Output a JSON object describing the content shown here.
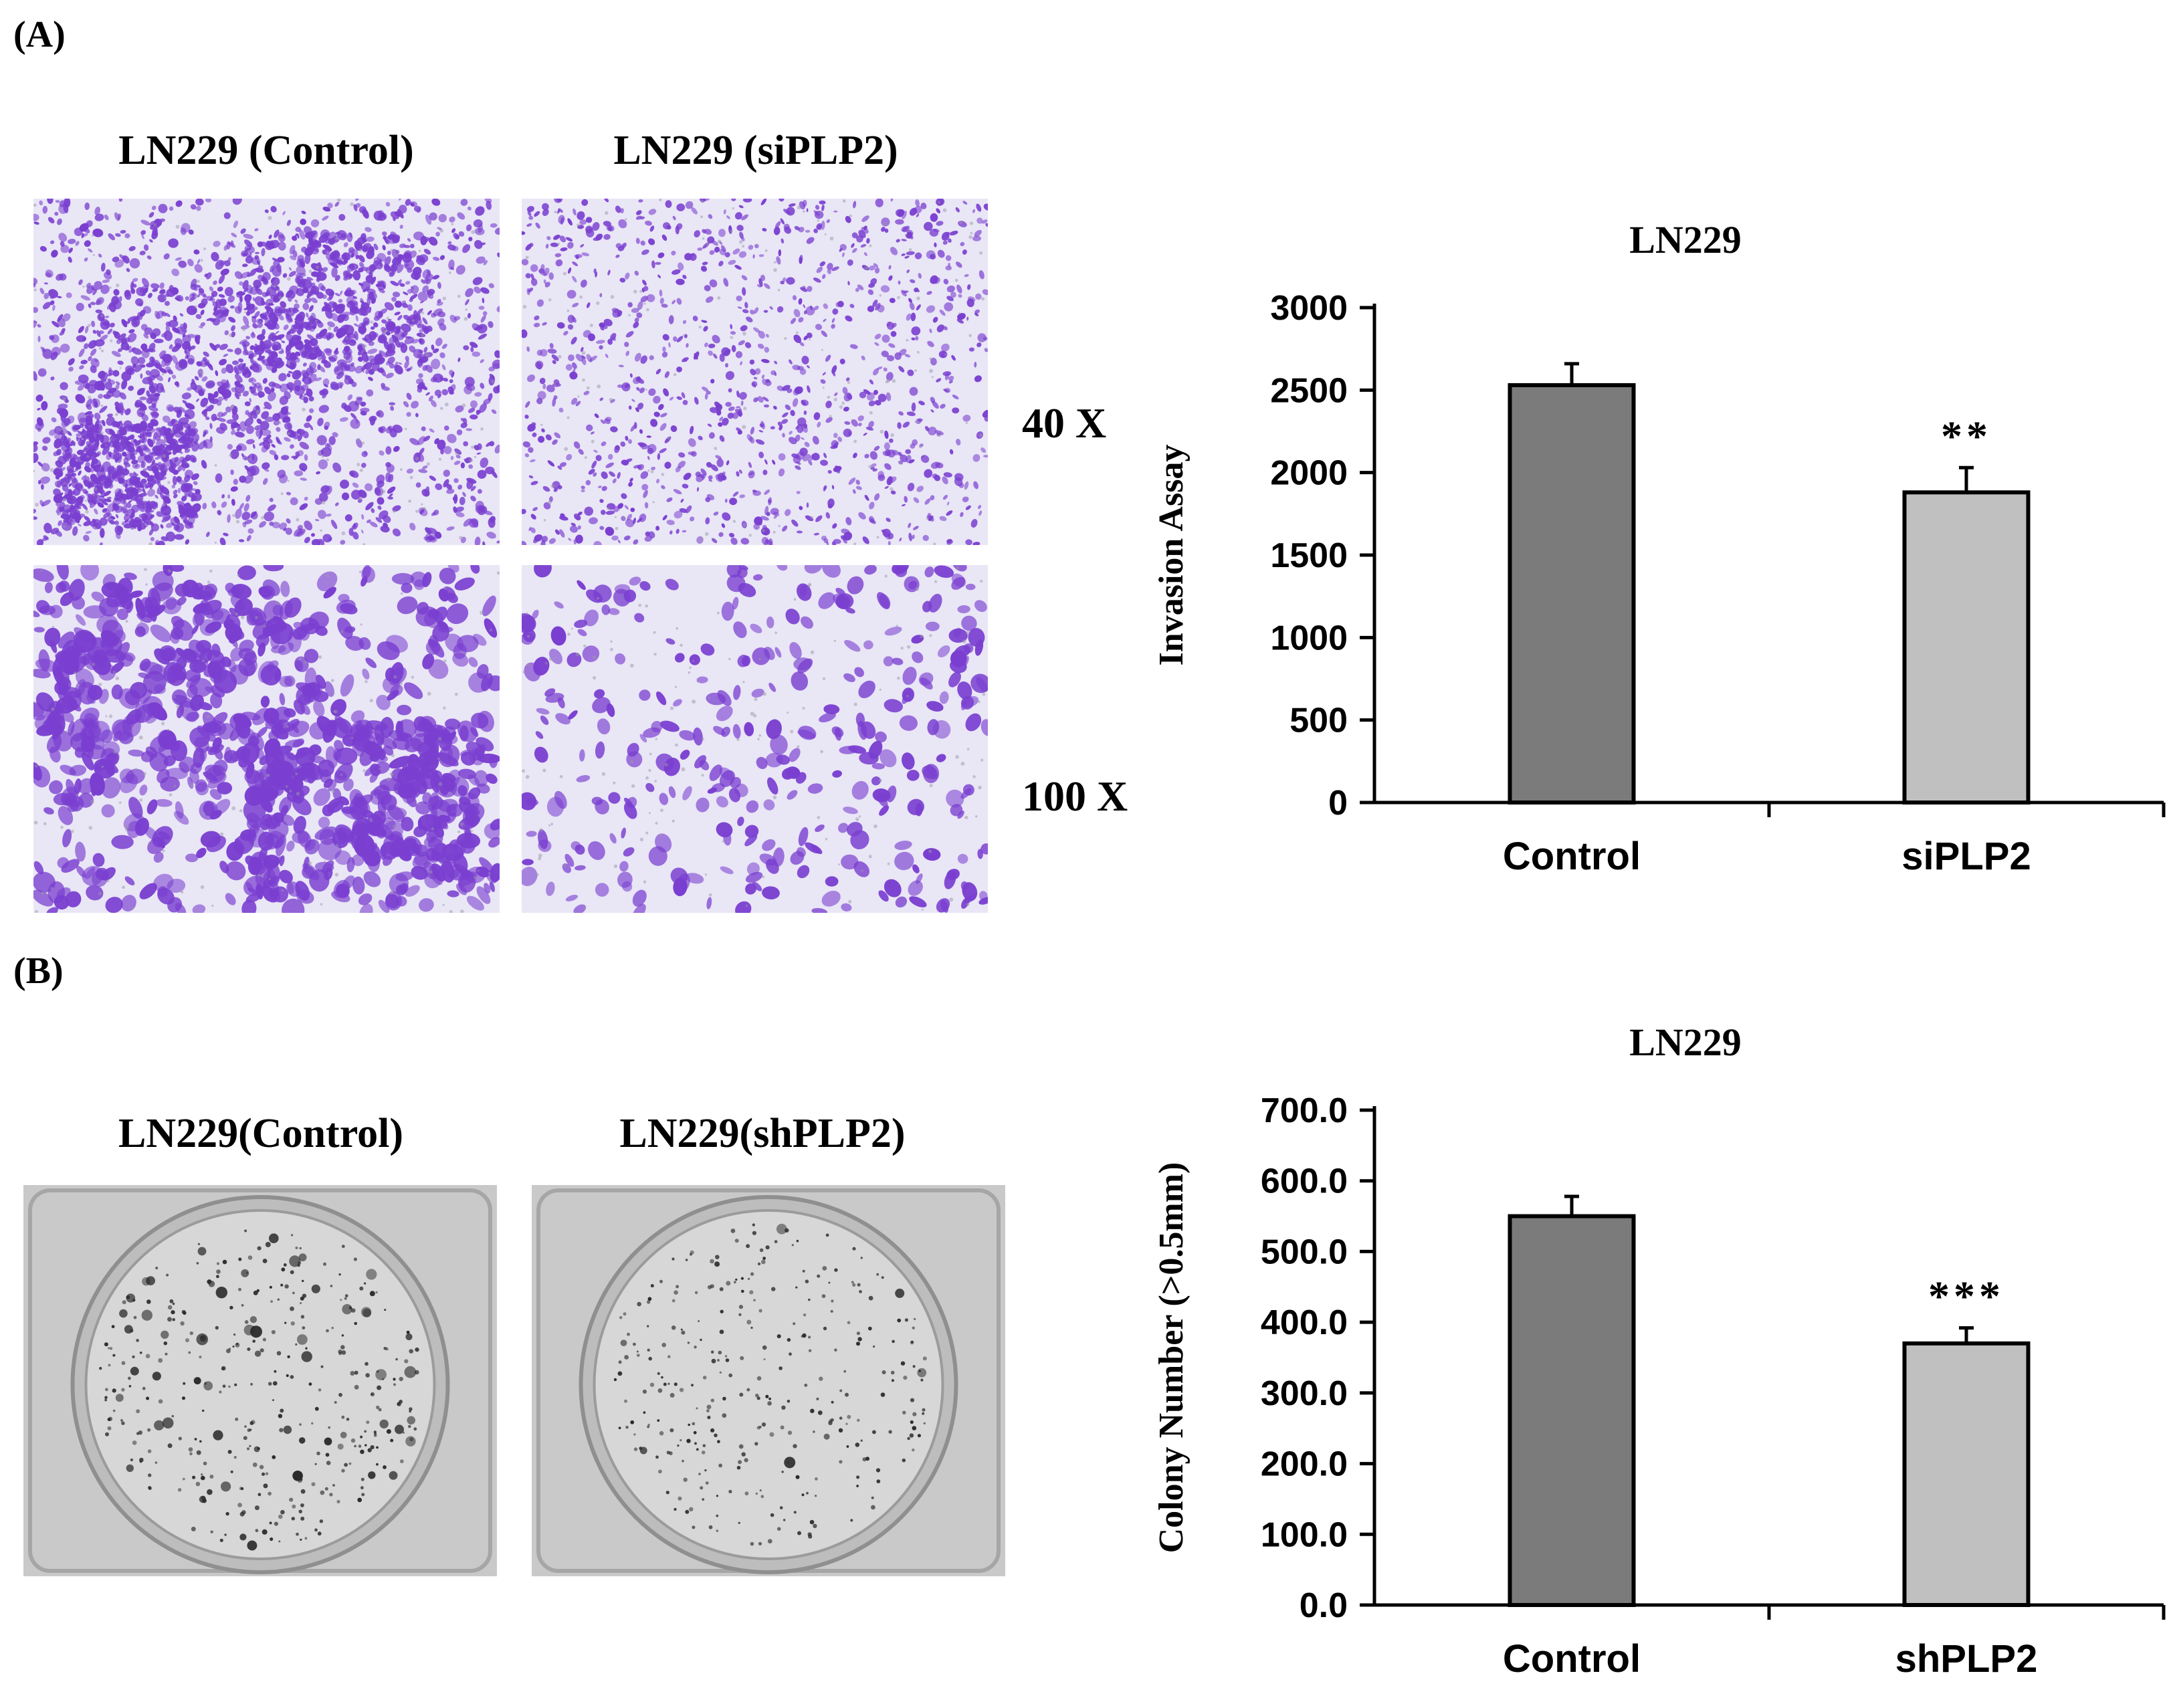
{
  "panels": {
    "a": {
      "letter": "(A)",
      "image_labels": [
        "LN229 (Control)",
        "LN229 (siPLP2)"
      ],
      "magnifications": [
        "40 X",
        "100 X"
      ]
    },
    "b": {
      "letter": "(B)",
      "image_labels": [
        "LN229(Control)",
        "LN229(shPLP2)"
      ]
    }
  },
  "colors": {
    "stain": "#7a3fd0",
    "bar_control": "#7b7b7b",
    "bar_treated": "#c0c0c0",
    "dish_bg": "#c9c9c9"
  },
  "chart_data": [
    {
      "type": "bar",
      "title": "LN229",
      "ylabel": "Invasion Assay",
      "xlabel": "",
      "categories": [
        "Control",
        "siPLP2"
      ],
      "values": [
        2530,
        1880
      ],
      "error": [
        130,
        150
      ],
      "annotations": [
        "",
        "**"
      ],
      "ylim": [
        0,
        3000
      ],
      "yticks": [
        "0",
        "500",
        "1000",
        "1500",
        "2000",
        "2500",
        "3000"
      ],
      "grid": false
    },
    {
      "type": "bar",
      "title": "LN229",
      "ylabel": "Colony  Number (>0.5mm)",
      "xlabel": "",
      "categories": [
        "Control",
        "shPLP2"
      ],
      "values": [
        550,
        370
      ],
      "error": [
        28,
        22
      ],
      "annotations": [
        "",
        "***"
      ],
      "ylim": [
        0,
        700
      ],
      "yticks": [
        "0.0",
        "100.0",
        "200.0",
        "300.0",
        "400.0",
        "500.0",
        "600.0",
        "700.0"
      ],
      "grid": false
    }
  ]
}
